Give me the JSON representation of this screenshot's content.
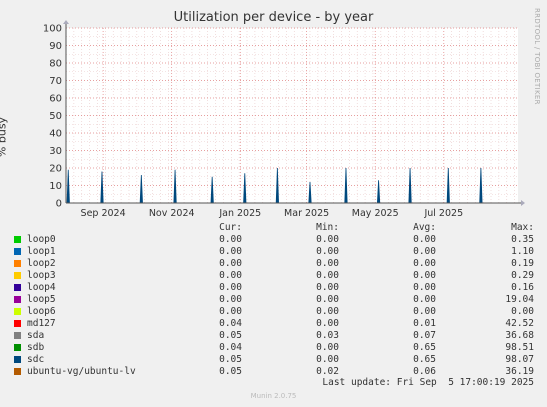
{
  "header": {
    "title": "Utilization per device - by year",
    "side_label": "RRDTOOL / TOBI OETIKER"
  },
  "footer": {
    "last_update": "Last update: Fri Sep  5 17:00:19 2025",
    "version": "Munin 2.0.75"
  },
  "legend": {
    "headers": {
      "cur": "Cur:",
      "min": "Min:",
      "avg": "Avg:",
      "max": "Max:"
    },
    "items": [
      {
        "name": "loop0",
        "color": "#00cc00",
        "cur": "0.00",
        "min": "0.00",
        "avg": "0.00",
        "max": "0.35"
      },
      {
        "name": "loop1",
        "color": "#0066b3",
        "cur": "0.00",
        "min": "0.00",
        "avg": "0.00",
        "max": "1.10"
      },
      {
        "name": "loop2",
        "color": "#ff8000",
        "cur": "0.00",
        "min": "0.00",
        "avg": "0.00",
        "max": "0.19"
      },
      {
        "name": "loop3",
        "color": "#ffcc00",
        "cur": "0.00",
        "min": "0.00",
        "avg": "0.00",
        "max": "0.29"
      },
      {
        "name": "loop4",
        "color": "#330099",
        "cur": "0.00",
        "min": "0.00",
        "avg": "0.00",
        "max": "0.16"
      },
      {
        "name": "loop5",
        "color": "#990099",
        "cur": "0.00",
        "min": "0.00",
        "avg": "0.00",
        "max": "19.04"
      },
      {
        "name": "loop6",
        "color": "#ccff00",
        "cur": "0.00",
        "min": "0.00",
        "avg": "0.00",
        "max": "0.00"
      },
      {
        "name": "md127",
        "color": "#ff0000",
        "cur": "0.04",
        "min": "0.00",
        "avg": "0.01",
        "max": "42.52"
      },
      {
        "name": "sda",
        "color": "#808080",
        "cur": "0.05",
        "min": "0.03",
        "avg": "0.07",
        "max": "36.68"
      },
      {
        "name": "sdb",
        "color": "#008f00",
        "cur": "0.04",
        "min": "0.00",
        "avg": "0.65",
        "max": "98.51"
      },
      {
        "name": "sdc",
        "color": "#00487d",
        "cur": "0.05",
        "min": "0.00",
        "avg": "0.65",
        "max": "98.07"
      },
      {
        "name": "ubuntu-vg/ubuntu-lv",
        "color": "#b35a00",
        "cur": "0.05",
        "min": "0.02",
        "avg": "0.06",
        "max": "36.19"
      }
    ]
  },
  "chart_data": {
    "type": "line",
    "title": "Utilization per device - by year",
    "ylabel": "% busy",
    "xlabel": "",
    "ylim": [
      0,
      100
    ],
    "yticks": [
      0,
      10,
      20,
      30,
      40,
      50,
      60,
      70,
      80,
      90,
      100
    ],
    "xlim": [
      "2024-07-30",
      "2025-09-05"
    ],
    "xticks": [
      {
        "label": "Sep 2024",
        "date": "2024-09-01"
      },
      {
        "label": "Nov 2024",
        "date": "2024-11-01"
      },
      {
        "label": "Jan 2025",
        "date": "2025-01-01"
      },
      {
        "label": "Mar 2025",
        "date": "2025-03-01"
      },
      {
        "label": "May 2025",
        "date": "2025-05-01"
      },
      {
        "label": "Jul 2025",
        "date": "2025-07-01"
      }
    ],
    "grid": true,
    "series": [
      {
        "name": "sdc",
        "color": "#00487d",
        "spikes": [
          {
            "date": "2024-08-01",
            "value": 19
          },
          {
            "date": "2024-08-31",
            "value": 18
          },
          {
            "date": "2024-10-05",
            "value": 16
          },
          {
            "date": "2024-11-04",
            "value": 19
          },
          {
            "date": "2024-12-07",
            "value": 15
          },
          {
            "date": "2025-01-05",
            "value": 17
          },
          {
            "date": "2025-02-03",
            "value": 20
          },
          {
            "date": "2025-03-04",
            "value": 12
          },
          {
            "date": "2025-04-05",
            "value": 20
          },
          {
            "date": "2025-05-04",
            "value": 13
          },
          {
            "date": "2025-06-01",
            "value": 20
          },
          {
            "date": "2025-07-05",
            "value": 20
          },
          {
            "date": "2025-08-03",
            "value": 20
          }
        ]
      }
    ]
  }
}
